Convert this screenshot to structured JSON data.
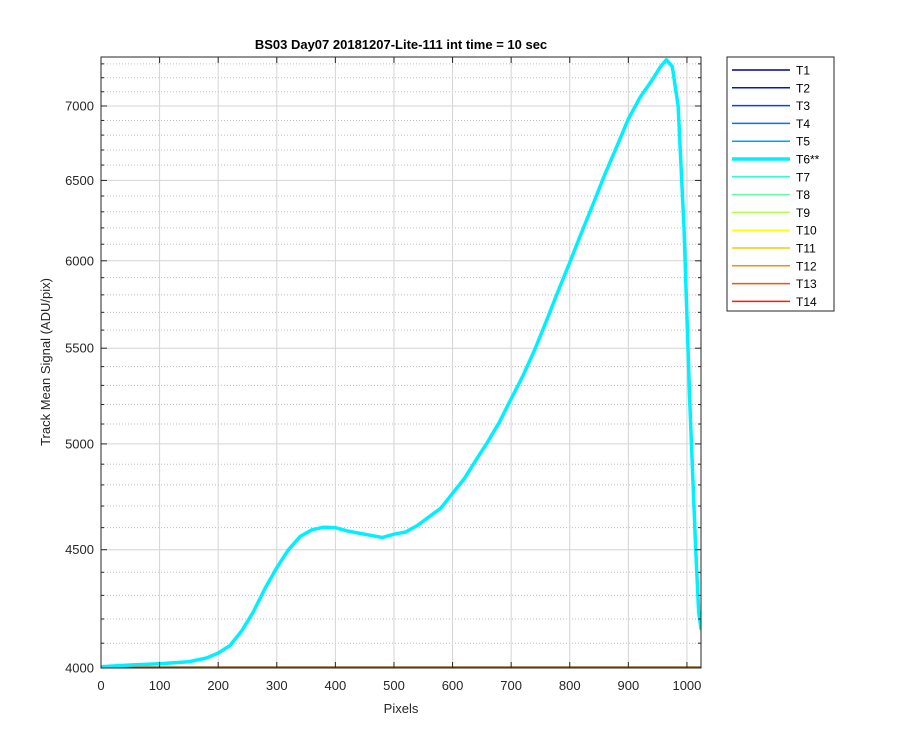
{
  "chart_data": {
    "type": "line",
    "title": "BS03 Day07 20181207-Lite-111 int time = 10 sec",
    "xlabel": "Pixels",
    "ylabel": "Track Mean Signal (ADU/pix)",
    "xlim": [
      0,
      1024
    ],
    "ylim": [
      4000,
      7350
    ],
    "y_scale": "log",
    "grid": true,
    "legend_position": "outside-top-right",
    "x_ticks": [
      0,
      100,
      200,
      300,
      400,
      500,
      600,
      700,
      800,
      900,
      1000
    ],
    "y_ticks": [
      4000,
      4500,
      5000,
      5500,
      6000,
      6500,
      7000
    ],
    "y_minor_ticks": [
      4100,
      4200,
      4300,
      4400,
      4600,
      4700,
      4800,
      4900,
      5100,
      5200,
      5300,
      5400,
      5600,
      5700,
      5800,
      5900,
      6100,
      6200,
      6300,
      6400,
      6600,
      6700,
      6800,
      6900,
      7100,
      7200,
      7300
    ],
    "series": [
      {
        "name": "T1",
        "color": "#00008f",
        "width": 1.2,
        "x": [
          0,
          1024
        ],
        "y": [
          4004,
          4004
        ]
      },
      {
        "name": "T2",
        "color": "#0019c8",
        "width": 1.2,
        "x": [
          0,
          1024
        ],
        "y": [
          4004,
          4004
        ]
      },
      {
        "name": "T3",
        "color": "#0040ff",
        "width": 1.2,
        "x": [
          0,
          1024
        ],
        "y": [
          4004,
          4004
        ]
      },
      {
        "name": "T4",
        "color": "#0070ff",
        "width": 1.2,
        "x": [
          0,
          1024
        ],
        "y": [
          4004,
          4004
        ]
      },
      {
        "name": "T5",
        "color": "#00a0ff",
        "width": 1.2,
        "x": [
          0,
          1024
        ],
        "y": [
          4004,
          4004
        ]
      },
      {
        "name": "T6**",
        "color": "#00f0ff",
        "width": 3.5,
        "x": [
          0,
          50,
          100,
          150,
          180,
          200,
          220,
          240,
          260,
          280,
          300,
          320,
          340,
          360,
          380,
          400,
          420,
          440,
          460,
          480,
          500,
          520,
          540,
          560,
          580,
          600,
          620,
          640,
          660,
          680,
          700,
          720,
          740,
          760,
          780,
          800,
          820,
          840,
          860,
          880,
          900,
          920,
          940,
          955,
          965,
          975,
          985,
          995,
          1005,
          1015,
          1020,
          1024
        ],
        "y": [
          4005,
          4012,
          4017,
          4025,
          4040,
          4060,
          4090,
          4150,
          4230,
          4330,
          4420,
          4500,
          4560,
          4590,
          4602,
          4600,
          4585,
          4575,
          4565,
          4555,
          4570,
          4580,
          4610,
          4650,
          4690,
          4760,
          4830,
          4920,
          5010,
          5110,
          5230,
          5350,
          5490,
          5650,
          5820,
          5990,
          6170,
          6350,
          6540,
          6720,
          6910,
          7060,
          7180,
          7280,
          7330,
          7280,
          7000,
          6200,
          5200,
          4500,
          4230,
          4160
        ]
      },
      {
        "name": "T7",
        "color": "#30ffcf",
        "width": 1.2,
        "x": [
          0,
          1024
        ],
        "y": [
          4004,
          4004
        ]
      },
      {
        "name": "T8",
        "color": "#60ff9f",
        "width": 1.2,
        "x": [
          0,
          1024
        ],
        "y": [
          4004,
          4004
        ]
      },
      {
        "name": "T9",
        "color": "#b0ff50",
        "width": 1.2,
        "x": [
          0,
          1024
        ],
        "y": [
          4004,
          4004
        ]
      },
      {
        "name": "T10",
        "color": "#ffff00",
        "width": 1.2,
        "x": [
          0,
          1024
        ],
        "y": [
          4003,
          4003
        ]
      },
      {
        "name": "T11",
        "color": "#ffc800",
        "width": 1.2,
        "x": [
          0,
          1024
        ],
        "y": [
          4003,
          4003
        ]
      },
      {
        "name": "T12",
        "color": "#ff8c00",
        "width": 1.2,
        "x": [
          0,
          1024
        ],
        "y": [
          4003,
          4003
        ]
      },
      {
        "name": "T13",
        "color": "#ff5000",
        "width": 1.2,
        "x": [
          0,
          1024
        ],
        "y": [
          4003,
          4003
        ]
      },
      {
        "name": "T14",
        "color": "#ff1a00",
        "width": 1.2,
        "x": [
          0,
          1024
        ],
        "y": [
          4002,
          4002
        ]
      }
    ]
  }
}
